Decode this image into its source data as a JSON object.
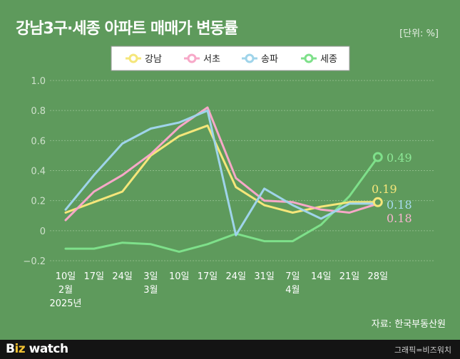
{
  "title": "강남3구·세종 아파트 매매가 변동률",
  "unit": "[단위: %]",
  "source": "자료: 한국부동산원",
  "footer": {
    "logo_b": "B",
    "logo_z": "iz",
    "logo_w": " watch",
    "credit": "그래픽=비즈워치"
  },
  "chart_data": {
    "type": "line",
    "title": "강남3구·세종 아파트 매매가 변동률",
    "ylabel": "%",
    "ylim": [
      -0.2,
      1.0
    ],
    "yticks": [
      "1.0",
      "0.8",
      "0.6",
      "0.4",
      "0.2",
      "0",
      "−0.2"
    ],
    "ytick_values": [
      1.0,
      0.8,
      0.6,
      0.4,
      0.2,
      0,
      -0.2
    ],
    "x_labels": [
      [
        "10일",
        "2월",
        "2025년"
      ],
      [
        "17일"
      ],
      [
        "24일"
      ],
      [
        "3일",
        "3월"
      ],
      [
        "10일"
      ],
      [
        "17일"
      ],
      [
        "24일"
      ],
      [
        "31일"
      ],
      [
        "7일",
        "4월"
      ],
      [
        "14일"
      ],
      [
        "21일"
      ],
      [
        "28일"
      ]
    ],
    "series": [
      {
        "name": "강남",
        "color": "#f5e67a",
        "label_color": "#f5e67a",
        "values": [
          0.12,
          0.19,
          0.26,
          0.5,
          0.63,
          0.7,
          0.29,
          0.17,
          0.12,
          0.16,
          0.19,
          0.19
        ],
        "end_label": "0.19"
      },
      {
        "name": "서초",
        "color": "#f7a8c8",
        "label_color": "#f7b4cf",
        "values": [
          0.07,
          0.26,
          0.37,
          0.51,
          0.69,
          0.82,
          0.35,
          0.2,
          0.19,
          0.14,
          0.12,
          0.18
        ],
        "end_label": "0.18"
      },
      {
        "name": "송파",
        "color": "#9fd4ea",
        "label_color": "#a8dcf0",
        "values": [
          0.14,
          0.37,
          0.58,
          0.68,
          0.72,
          0.8,
          -0.03,
          0.28,
          0.17,
          0.08,
          0.18,
          0.18
        ],
        "end_label": "0.18"
      },
      {
        "name": "세종",
        "color": "#7ee08a",
        "label_color": "#8ce896",
        "values": [
          -0.12,
          -0.12,
          -0.08,
          -0.09,
          -0.14,
          -0.09,
          -0.02,
          -0.07,
          -0.07,
          0.04,
          0.23,
          0.49
        ],
        "end_label": "0.49"
      }
    ]
  }
}
